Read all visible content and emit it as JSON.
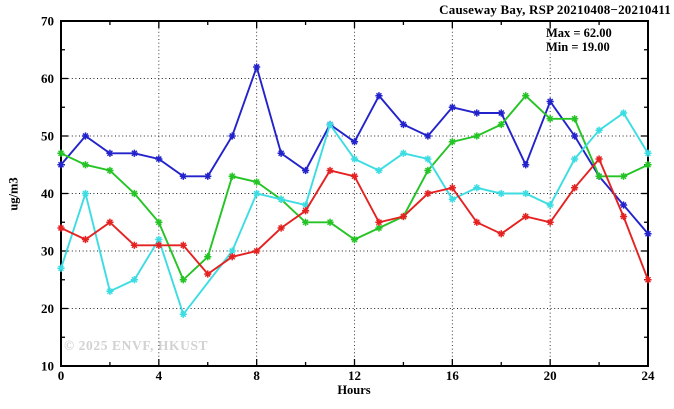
{
  "header": {
    "title": "Causeway Bay, RSP 20210408−20210411"
  },
  "annotations": {
    "max_label": "Max = 62.00",
    "min_label": "Min = 19.00",
    "watermark": "© 2025 ENVF, HKUST"
  },
  "chart_data": {
    "type": "line",
    "title": "Causeway Bay, RSP 20210408−20210411",
    "xlabel": "Hours",
    "ylabel": "ug/m3",
    "xlim": [
      0,
      24
    ],
    "ylim": [
      10,
      70
    ],
    "x_ticks": [
      0,
      4,
      8,
      12,
      16,
      20,
      24
    ],
    "x_minor_step": 2,
    "y_ticks": [
      10,
      20,
      30,
      40,
      50,
      60,
      70
    ],
    "y_minor_step": 5,
    "grid": true,
    "legend": "none",
    "max_value": 62.0,
    "min_value": 19.0,
    "x": [
      0,
      1,
      2,
      3,
      4,
      5,
      6,
      7,
      8,
      9,
      10,
      11,
      12,
      13,
      14,
      15,
      16,
      17,
      18,
      19,
      20,
      21,
      22,
      23,
      24
    ],
    "series": [
      {
        "name": "blue-series",
        "color": "#2323cb",
        "values": [
          45,
          50,
          47,
          47,
          46,
          43,
          43,
          50,
          62,
          47,
          44,
          52,
          49,
          57,
          52,
          50,
          55,
          54,
          54,
          45,
          56,
          50,
          43,
          38,
          33
        ]
      },
      {
        "name": "green-series",
        "color": "#25c425",
        "values": [
          47,
          45,
          44,
          40,
          35,
          25,
          29,
          43,
          42,
          39,
          35,
          35,
          32,
          34,
          36,
          44,
          49,
          50,
          52,
          57,
          53,
          53,
          43,
          43,
          45
        ]
      },
      {
        "name": "cyan-series",
        "color": "#3cdde2",
        "values": [
          27,
          40,
          23,
          25,
          32,
          19,
          null,
          30,
          40,
          39,
          38,
          52,
          46,
          44,
          47,
          46,
          39,
          41,
          40,
          40,
          38,
          46,
          51,
          54,
          47
        ]
      },
      {
        "name": "red-series",
        "color": "#e52222",
        "values": [
          34,
          32,
          35,
          31,
          31,
          31,
          26,
          29,
          30,
          34,
          37,
          44,
          43,
          35,
          36,
          40,
          41,
          35,
          33,
          36,
          35,
          41,
          46,
          36,
          25
        ]
      }
    ]
  }
}
